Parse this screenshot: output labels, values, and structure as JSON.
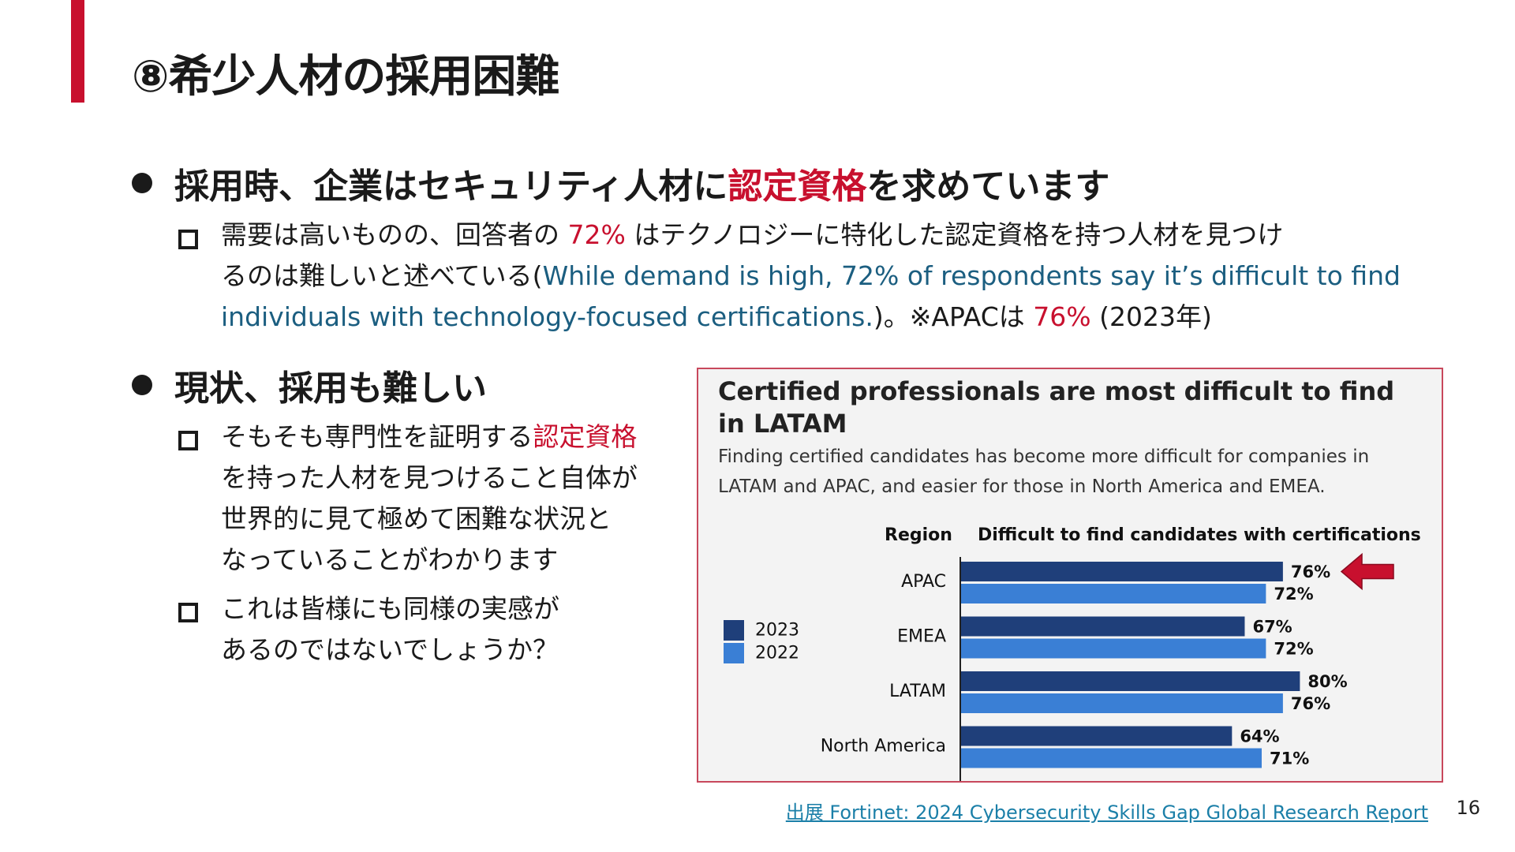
{
  "slide": {
    "title": "⑧希少人材の採用困難",
    "page_number": "16",
    "source_link": "出展 Fortinet: 2024 Cybersecurity Skills Gap Global Research Report",
    "colors": {
      "accent": "#c8102e",
      "teal": "#1b5e80",
      "bar_2023": "#1f3f7a",
      "bar_2022": "#3a7fd5"
    }
  },
  "bullet1": {
    "heading_pre": "採用時、企業はセキュリティ人材に",
    "heading_highlight": "認定資格",
    "heading_post": "を求めています",
    "sub": {
      "line1_pre": "需要は高いものの、回答者の ",
      "line1_pct": "72%",
      "line1_post": " はテクノロジーに特化した認定資格を持つ人材を見つけ",
      "line2_pre": "るのは難しいと述べている(",
      "line2_en": "While demand is high, 72% of respondents say it’s difficult to find",
      "line3_en": "individuals with technology-focused certifications.",
      "line3_post": ")。※APACは ",
      "line3_pct": "76%",
      "line3_tail": " (2023年)"
    }
  },
  "bullet2": {
    "heading": "現状、採用も難しい",
    "sub1_line1_pre": "そもそも専門性を証明する",
    "sub1_line1_red": "認定資格",
    "sub1_line2": "を持った人材を見つけること自体が",
    "sub1_line3": "世界的に見て極めて困難な状況と",
    "sub1_line4": "なっていることがわかります",
    "sub2_line1": "これは皆様にも同様の実感が",
    "sub2_line2": "あるのではないでしょうか？"
  },
  "chart_data": {
    "type": "bar",
    "orientation": "horizontal",
    "title_line1": "Certified professionals are most difficult to find",
    "title_line2": "in LATAM",
    "subtitle_line1": "Finding certified candidates has become more difficult for companies in",
    "subtitle_line2": "LATAM and APAC, and easier for those in North America and EMEA.",
    "category_header": "Region",
    "value_header": "Difficult to find candidates with certifications",
    "categories": [
      "APAC",
      "EMEA",
      "LATAM",
      "North America"
    ],
    "series": [
      {
        "name": "2023",
        "values": [
          76,
          67,
          80,
          64
        ],
        "color": "#1f3f7a"
      },
      {
        "name": "2022",
        "values": [
          72,
          72,
          76,
          71
        ],
        "color": "#3a7fd5"
      }
    ],
    "value_labels": {
      "2023": [
        "76%",
        "67%",
        "80%",
        "64%"
      ],
      "2022": [
        "72%",
        "72%",
        "76%",
        "71%"
      ]
    },
    "legend_position": "left",
    "highlight_category": "APAC",
    "highlight_icon": "arrow-left-icon",
    "grid": false
  }
}
